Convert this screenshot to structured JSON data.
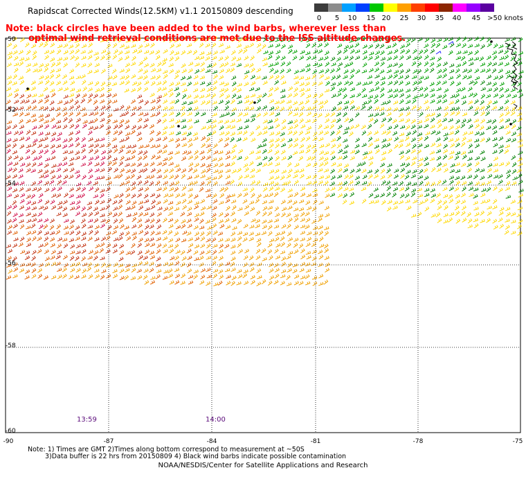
{
  "title": "Rapidscat Corrected Winds(12.5KM) v1.1 20150809 descending",
  "note": {
    "line1": "Note: black circles have been added to the wind barbs, wherever less than",
    "line2": "optimal wind retrieval conditions are met due to the ISS altitude changes."
  },
  "color_scale": {
    "colors": [
      "#3c3c3c",
      "#8c8c8c",
      "#00a0ff",
      "#0040ff",
      "#00c800",
      "#ffff00",
      "#ffa000",
      "#ff4000",
      "#ff0000",
      "#8b2500",
      "#ff00ff",
      "#9600ff",
      "#5a00a0"
    ],
    "labels": [
      "0",
      "5",
      "10",
      "15",
      "20",
      "25",
      "30",
      "35",
      "40",
      "45",
      ">50 knots"
    ]
  },
  "axes": {
    "lat_labels": [
      "-50",
      "-52",
      "-54",
      "-56",
      "-58",
      "-60"
    ],
    "lon_labels": [
      "-90",
      "-87",
      "-84",
      "-81",
      "-78",
      "-75"
    ]
  },
  "time_labels": [
    "13:59",
    "14:00"
  ],
  "footnotes": {
    "line1": "Note: 1) Times are GMT 2)Times along bottom correspond to measurement at ~50S",
    "line2": "3)Data buffer is 22 hrs from 20150809 4) Black wind barbs indicate possible contamination"
  },
  "credit": "NOAA/NESDIS/Center for Satellite Applications and Research",
  "wind_colors": {
    "calm_green": "#00a000",
    "dark_green": "#008000",
    "yellow": "#ffd800",
    "orange": "#f0a000",
    "dark_orange": "#e06000",
    "red_brown": "#c03010",
    "crimson": "#d0104a",
    "black": "#000000",
    "blue": "#2020ff"
  }
}
